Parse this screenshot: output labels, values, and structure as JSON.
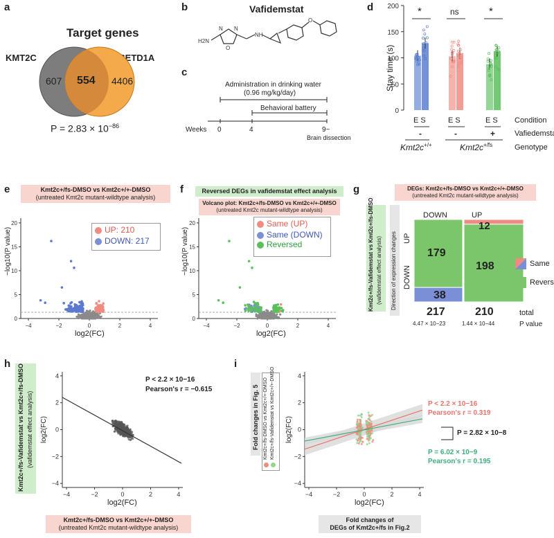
{
  "panel_a": {
    "label": "a",
    "title": "Target genes",
    "left_set": "KMT2C",
    "right_set": "SETD1A",
    "left_only": "607",
    "overlap": "554",
    "right_only": "4406",
    "p_value": "P = 2.83 × 10",
    "p_exp": "−86",
    "colors": {
      "left": "#7d7d7d",
      "right": "#f4a94a"
    }
  },
  "panel_b": {
    "label": "b",
    "title": "Vafidemstat",
    "atoms": {
      "h2n": "H2N",
      "n1": "N",
      "n2": "N",
      "o1": "O",
      "nh": "NH",
      "o2": "O"
    }
  },
  "panel_c": {
    "label": "c",
    "admin": "Administration in drinking water",
    "dose": "(0.96 mg/kg/day)",
    "battery": "Behavioral battery",
    "weeks_label": "Weeks",
    "ticks": [
      "0",
      "4",
      "9~"
    ],
    "dissection": "Brain dissection"
  },
  "panel_d": {
    "label": "d",
    "ylabel": "Stay time (s)",
    "yticks": [
      "0",
      "50",
      "100",
      "150",
      "200"
    ],
    "significance": [
      "*",
      "ns",
      "*"
    ],
    "row_labels": [
      "Condition",
      "Vafiedemstat",
      "Genotype"
    ],
    "condition_pairs": [
      "E S",
      "E S",
      "E S"
    ],
    "treatment": [
      "-",
      "-",
      "+"
    ],
    "genotype_wt": "Kmt2c",
    "genotype_wt_sup": "+/+",
    "genotype_mut": "Kmt2c",
    "genotype_mut_sup": "+/fs",
    "colors": [
      "#5b7fd0",
      "#f08b82",
      "#5cbf5c"
    ]
  },
  "panel_e": {
    "label": "e",
    "title_line1": "Kmt2c+/fs-DMSO vs Kmt2c+/+-DMSO",
    "title_line2": "(untreated Kmt2c mutant-wildtype analysis)",
    "legend": [
      {
        "label": "UP: 210",
        "color": "#f08b82"
      },
      {
        "label": "DOWN: 217",
        "color": "#7b8fd6"
      }
    ],
    "xlabel": "log2(FC)",
    "ylabel": "−log10(P value)",
    "xticks": [
      "−4",
      "−2",
      "0",
      "2",
      "4"
    ],
    "yticks": [
      "0",
      "5",
      "10",
      "15",
      "20"
    ]
  },
  "panel_f": {
    "label": "f",
    "banner": "Reversed DEGs in vafidemstat effect analysis",
    "subtitle_line1": "Volcano plot: Kmt2c+/fs-DMSO vs Kmt2c+/+-DMSO",
    "subtitle_line2": "(untreated Kmt2c mutant-wildtype analysis)",
    "legend": [
      {
        "label": "Same (UP)",
        "color": "#f08b82"
      },
      {
        "label": "Same (DOWN)",
        "color": "#7b8fd6"
      },
      {
        "label": "Reversed",
        "color": "#5cbf5c"
      }
    ],
    "xlabel": "log2(FC)",
    "ylabel": "−log10(P value)",
    "xticks": [
      "−4",
      "−2",
      "0",
      "2",
      "4"
    ],
    "yticks": [
      "0",
      "5",
      "10",
      "15",
      "20"
    ]
  },
  "panel_g": {
    "label": "g",
    "title_line1": "DEGs: Kmt2c+/fs-DMSO vs Kmt2c+/+-DMSO",
    "title_line2": "(untreated Kmt2c mutant-wildtype analysis)",
    "side_line1": "Kmt2c+/fs-Vafidemstat vs Kmt2c+/fs-DMSO",
    "side_line2": "(vafidemstat effect analysis)",
    "direction_label": "Direction of expression changes",
    "col_labels": [
      "DOWN",
      "UP"
    ],
    "row_labels": [
      "UP",
      "DOWN"
    ],
    "values": {
      "down_up": "179",
      "down_down": "38",
      "up_up": "12",
      "up_down": "198"
    },
    "totals": [
      "217",
      "210"
    ],
    "total_label": "total",
    "pvals": [
      "4.47 × 10−23",
      "1.44 × 10−44"
    ],
    "pval_label": "P value",
    "legend": [
      "Same",
      "Reversed"
    ]
  },
  "panel_h": {
    "label": "h",
    "p_text": "P < 2.2 × 10−16",
    "r_text": "Pearson's r = −0.615",
    "xlabel": "log2(FC)",
    "ylabel": "log2(FC)",
    "xticks": [
      "−4",
      "−2",
      "0",
      "2",
      "4"
    ],
    "yticks": [
      "−4",
      "−2",
      "0",
      "2",
      "4"
    ],
    "side_line1": "Kmt2c+/fs-Vafidemstat vs Kmt2c+/fs-DMSO",
    "side_line2": "(vafidemstat effect analysis)",
    "bottom_line1": "Kmt2c+/fs-DMSO vs Kmt2c+/+-DMSO",
    "bottom_line2": "(untreated Kmt2c mutant-wildtype analysis)"
  },
  "panel_i": {
    "label": "i",
    "p1": "P < 2.2 × 10−16",
    "r1": "Pearson's r = 0.319",
    "pdiff": "P = 2.82 × 10−8",
    "p2": "P = 6.02 × 10−9",
    "r2": "Pearson's r = 0.195",
    "xlabel": "log2(FC)",
    "ylabel": "log2(FC)",
    "xticks": [
      "−4",
      "−2",
      "0",
      "2",
      "4"
    ],
    "yticks": [
      "−4",
      "−2",
      "0",
      "2",
      "4"
    ],
    "side_box": "Fold changes in Fig. 5",
    "side_leg1": "Kmt2c+/fs-DMSO vs Kmt2c+/+-DMSO",
    "side_leg2": "Kmt2c+/fs-Vafidemstat vs Kmt2c+/+-DMSO",
    "bottom_line1": "Fold changes of",
    "bottom_line2": "DEGs of Kmt2c+/fs in Fig.2",
    "colors": {
      "pink": "#e9736a",
      "green": "#3fae7c"
    }
  }
}
